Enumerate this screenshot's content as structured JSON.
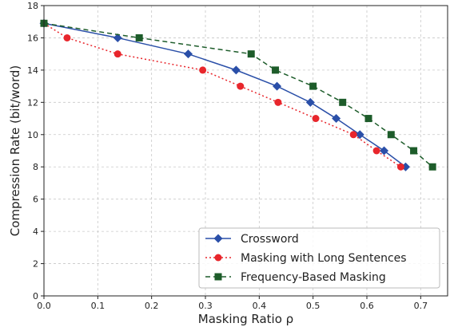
{
  "chart_data": {
    "type": "line",
    "xlabel": "Masking Ratio ρ",
    "ylabel": "Compression Rate (bit/word)",
    "xlim": [
      0.0,
      0.75
    ],
    "ylim": [
      0,
      18
    ],
    "xticks": [
      "0.0",
      "0.1",
      "0.2",
      "0.3",
      "0.4",
      "0.5",
      "0.6",
      "0.7"
    ],
    "yticks": [
      "0",
      "2",
      "4",
      "6",
      "8",
      "10",
      "12",
      "14",
      "16",
      "18"
    ],
    "grid": true,
    "legend_position": "bottom-right",
    "series": [
      {
        "name": "Crossword",
        "color": "#2a4fa8",
        "line_style": "solid",
        "marker": "diamond",
        "x": [
          0.0,
          0.137,
          0.268,
          0.357,
          0.433,
          0.495,
          0.543,
          0.587,
          0.632,
          0.672
        ],
        "y": [
          16.9,
          16.0,
          15.0,
          14.0,
          13.0,
          12.0,
          11.0,
          10.0,
          9.0,
          8.0
        ]
      },
      {
        "name": "Masking with Long Sentences",
        "color": "#e8262c",
        "line_style": "dotted",
        "marker": "circle",
        "x": [
          0.0,
          0.043,
          0.137,
          0.295,
          0.365,
          0.435,
          0.505,
          0.575,
          0.618,
          0.663
        ],
        "y": [
          16.9,
          16.0,
          15.0,
          14.0,
          13.0,
          12.0,
          11.0,
          10.0,
          9.0,
          8.0
        ]
      },
      {
        "name": "Frequency-Based Masking",
        "color": "#1d5c2a",
        "line_style": "dashed",
        "marker": "square",
        "x": [
          0.0,
          0.177,
          0.385,
          0.43,
          0.5,
          0.555,
          0.603,
          0.645,
          0.687,
          0.722
        ],
        "y": [
          16.9,
          16.0,
          15.0,
          14.0,
          13.0,
          12.0,
          11.0,
          10.0,
          9.0,
          8.0
        ]
      }
    ]
  }
}
